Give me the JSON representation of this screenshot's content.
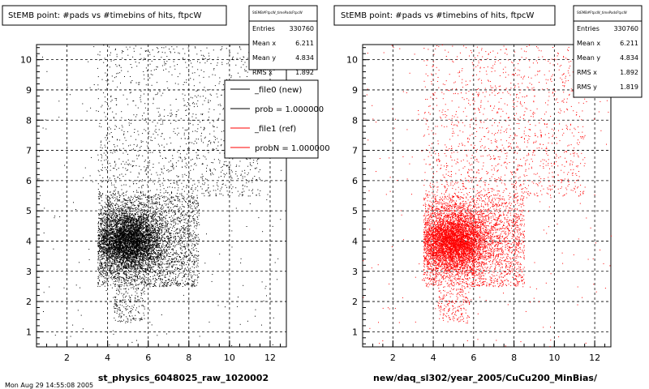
{
  "chart_data": [
    {
      "type": "scatter",
      "title": "StEMB point: #pads vs #timebins of hits, ftpcW",
      "xlabel": "st_physics_6048025_raw_1020002",
      "ylabel": "",
      "xlim": [
        0.5,
        12.8
      ],
      "ylim": [
        0.5,
        10.5
      ],
      "xticks": [
        2,
        4,
        6,
        8,
        10,
        12
      ],
      "yticks": [
        1,
        2,
        3,
        4,
        5,
        6,
        7,
        8,
        9,
        10
      ],
      "grid": true,
      "color": "#000000",
      "stats": {
        "header": "StEMB#FtpcW_timePadsFtpcW",
        "rows": [
          {
            "label": "Entries",
            "value": "330760"
          },
          {
            "label": "Mean x",
            "value": "6.211"
          },
          {
            "label": "Mean y",
            "value": "4.834"
          },
          {
            "label": "RMS x",
            "value": "1.892"
          }
        ]
      },
      "legend": {
        "placement": "top-right",
        "entries": [
          {
            "label": "_file0 (new)",
            "color": "#000000"
          },
          {
            "label": "prob = 1.000000",
            "color": "#000000"
          },
          {
            "label": "_file1 (ref)",
            "color": "#ff0000"
          },
          {
            "label": "probN = 1.000000",
            "color": "#ff0000"
          }
        ]
      },
      "distribution": {
        "core_x": [
          3.5,
          8.0
        ],
        "core_y": [
          2.5,
          5.5
        ],
        "densest": {
          "x": 5.0,
          "y": 4.0
        }
      }
    },
    {
      "type": "scatter",
      "title": "StEMB point: #pads vs #timebins of hits, ftpcW",
      "xlabel": "new/daq_sl302/year_2005/CuCu200_MinBias/",
      "ylabel": "",
      "xlim": [
        0.5,
        12.8
      ],
      "ylim": [
        0.5,
        10.5
      ],
      "xticks": [
        2,
        4,
        6,
        8,
        10,
        12
      ],
      "yticks": [
        1,
        2,
        3,
        4,
        5,
        6,
        7,
        8,
        9,
        10
      ],
      "grid": true,
      "color": "#ff0000",
      "stats": {
        "header": "StEMB#FtpcW_timePadsFtpcW",
        "rows": [
          {
            "label": "Entries",
            "value": "330760"
          },
          {
            "label": "Mean x",
            "value": "6.211"
          },
          {
            "label": "Mean y",
            "value": "4.834"
          },
          {
            "label": "RMS x",
            "value": "1.892"
          },
          {
            "label": "RMS y",
            "value": "1.819"
          }
        ]
      },
      "distribution": {
        "core_x": [
          3.5,
          8.0
        ],
        "core_y": [
          2.5,
          5.5
        ],
        "densest": {
          "x": 5.0,
          "y": 4.0
        }
      }
    }
  ],
  "footer_text": "Mon Aug 29 14:55:08 2005"
}
